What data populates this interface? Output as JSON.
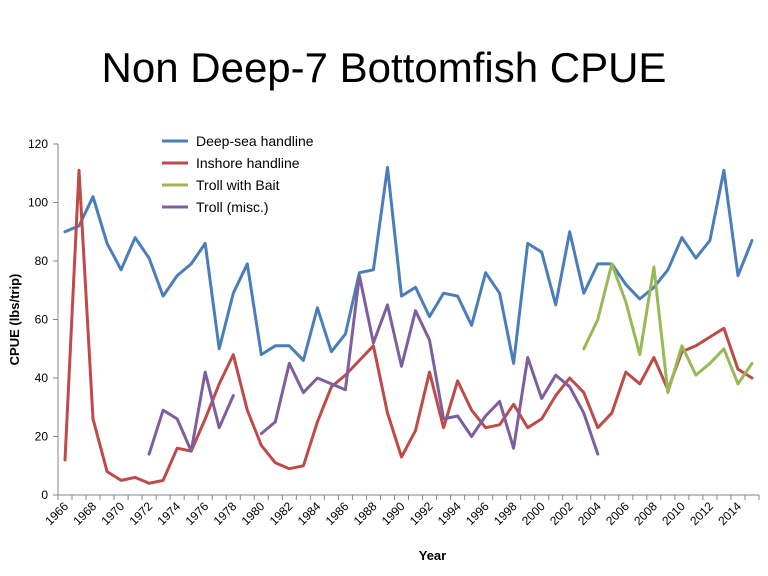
{
  "chart_data": {
    "type": "line",
    "title": "Non Deep-7 Bottomfish CPUE",
    "xlabel": "Year",
    "ylabel": "CPUE (lbs/trip)",
    "ylim": [
      0,
      120
    ],
    "yticks": [
      0,
      20,
      40,
      60,
      80,
      100,
      120
    ],
    "xlim": [
      1966,
      2015
    ],
    "xticks": [
      "1966",
      "1968",
      "1970",
      "1972",
      "1974",
      "1976",
      "1978",
      "1980",
      "1982",
      "1984",
      "1986",
      "1988",
      "1990",
      "1992",
      "1994",
      "1996",
      "1998",
      "2000",
      "2002",
      "2004",
      "2006",
      "2008",
      "2010",
      "2012",
      "2014"
    ],
    "grid": false,
    "legend_position": "top-left",
    "series": [
      {
        "name": "Deep-sea handline",
        "color": "#4a7ebb",
        "points": [
          [
            1966,
            90
          ],
          [
            1967,
            92
          ],
          [
            1968,
            102
          ],
          [
            1969,
            86
          ],
          [
            1970,
            77
          ],
          [
            1971,
            88
          ],
          [
            1972,
            81
          ],
          [
            1973,
            68
          ],
          [
            1974,
            75
          ],
          [
            1975,
            79
          ],
          [
            1976,
            86
          ],
          [
            1977,
            50
          ],
          [
            1978,
            69
          ],
          [
            1979,
            79
          ],
          [
            1980,
            48
          ],
          [
            1981,
            51
          ],
          [
            1982,
            51
          ],
          [
            1983,
            46
          ],
          [
            1984,
            64
          ],
          [
            1985,
            49
          ],
          [
            1986,
            55
          ],
          [
            1987,
            76
          ],
          [
            1988,
            77
          ],
          [
            1989,
            112
          ],
          [
            1990,
            68
          ],
          [
            1991,
            71
          ],
          [
            1992,
            61
          ],
          [
            1993,
            69
          ],
          [
            1994,
            68
          ],
          [
            1995,
            58
          ],
          [
            1996,
            76
          ],
          [
            1997,
            69
          ],
          [
            1998,
            45
          ],
          [
            1999,
            86
          ],
          [
            2000,
            83
          ],
          [
            2001,
            65
          ],
          [
            2002,
            90
          ],
          [
            2003,
            69
          ],
          [
            2004,
            79
          ],
          [
            2005,
            79
          ],
          [
            2006,
            72
          ],
          [
            2007,
            67
          ],
          [
            2008,
            71
          ],
          [
            2009,
            77
          ],
          [
            2010,
            88
          ],
          [
            2011,
            81
          ],
          [
            2012,
            87
          ],
          [
            2013,
            111
          ],
          [
            2014,
            75
          ],
          [
            2015,
            87
          ]
        ]
      },
      {
        "name": "Inshore handline",
        "color": "#be4b48",
        "points": [
          [
            1966,
            12
          ],
          [
            1967,
            111
          ],
          [
            1968,
            26
          ],
          [
            1969,
            8
          ],
          [
            1970,
            5
          ],
          [
            1971,
            6
          ],
          [
            1972,
            4
          ],
          [
            1973,
            5
          ],
          [
            1974,
            16
          ],
          [
            1975,
            15
          ],
          [
            1976,
            26
          ],
          [
            1977,
            38
          ],
          [
            1978,
            48
          ],
          [
            1979,
            29
          ],
          [
            1980,
            17
          ],
          [
            1981,
            11
          ],
          [
            1982,
            9
          ],
          [
            1983,
            10
          ],
          [
            1984,
            25
          ],
          [
            1985,
            37
          ],
          [
            1986,
            41
          ],
          [
            1987,
            46
          ],
          [
            1988,
            51
          ],
          [
            1989,
            28
          ],
          [
            1990,
            13
          ],
          [
            1991,
            22
          ],
          [
            1992,
            42
          ],
          [
            1993,
            23
          ],
          [
            1994,
            39
          ],
          [
            1995,
            29
          ],
          [
            1996,
            23
          ],
          [
            1997,
            24
          ],
          [
            1998,
            31
          ],
          [
            1999,
            23
          ],
          [
            2000,
            26
          ],
          [
            2001,
            34
          ],
          [
            2002,
            40
          ],
          [
            2003,
            35
          ],
          [
            2004,
            23
          ],
          [
            2005,
            28
          ],
          [
            2006,
            42
          ],
          [
            2007,
            38
          ],
          [
            2008,
            47
          ],
          [
            2009,
            36
          ],
          [
            2010,
            49
          ],
          [
            2011,
            51
          ],
          [
            2012,
            54
          ],
          [
            2013,
            57
          ],
          [
            2014,
            43
          ],
          [
            2015,
            40
          ]
        ]
      },
      {
        "name": "Troll with Bait",
        "color": "#98b954",
        "points": [
          [
            2003,
            50
          ],
          [
            2004,
            60
          ],
          [
            2005,
            79
          ],
          [
            2006,
            66
          ],
          [
            2007,
            48
          ],
          [
            2008,
            78
          ],
          [
            2009,
            35
          ],
          [
            2010,
            51
          ],
          [
            2011,
            41
          ],
          [
            2012,
            45
          ],
          [
            2013,
            50
          ],
          [
            2014,
            38
          ],
          [
            2015,
            45
          ]
        ]
      },
      {
        "name": "Troll (misc.)",
        "color": "#7d5fa0",
        "segments": [
          [
            [
              1972,
              14
            ],
            [
              1973,
              29
            ],
            [
              1974,
              26
            ],
            [
              1975,
              15
            ],
            [
              1976,
              42
            ],
            [
              1977,
              23
            ],
            [
              1978,
              34
            ]
          ],
          [
            [
              1980,
              21
            ],
            [
              1981,
              25
            ],
            [
              1982,
              45
            ],
            [
              1983,
              35
            ],
            [
              1984,
              40
            ],
            [
              1985,
              38
            ],
            [
              1986,
              36
            ],
            [
              1987,
              75
            ],
            [
              1988,
              52
            ],
            [
              1989,
              65
            ],
            [
              1990,
              44
            ],
            [
              1991,
              63
            ],
            [
              1992,
              53
            ],
            [
              1993,
              26
            ],
            [
              1994,
              27
            ],
            [
              1995,
              20
            ],
            [
              1996,
              27
            ],
            [
              1997,
              32
            ],
            [
              1998,
              16
            ],
            [
              1999,
              47
            ],
            [
              2000,
              33
            ],
            [
              2001,
              41
            ],
            [
              2002,
              37
            ],
            [
              2003,
              28
            ],
            [
              2004,
              14
            ]
          ]
        ]
      }
    ]
  }
}
